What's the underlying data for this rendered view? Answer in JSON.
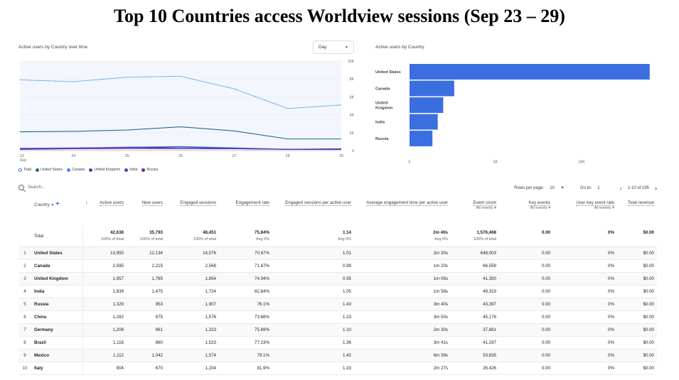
{
  "page_title": "Top 10 Countries access Worldview sessions (Sep 23 – 29)",
  "line_card": {
    "title": "Active users by Country over time",
    "dropdown_value": "Day",
    "legend": [
      {
        "label": "Total",
        "color": "#1a73e8",
        "hollow": true
      },
      {
        "label": "United States",
        "color": "#1e6e8e"
      },
      {
        "label": "Canada",
        "color": "#4285f4"
      },
      {
        "label": "United Kingdom",
        "color": "#3949ab"
      },
      {
        "label": "India",
        "color": "#5e35b1"
      },
      {
        "label": "Russia",
        "color": "#7b1fa2"
      }
    ]
  },
  "bar_card": {
    "title": "Active users by Country"
  },
  "chart_data": [
    {
      "type": "line",
      "x": [
        "23",
        "24",
        "25",
        "26",
        "27",
        "28",
        "29"
      ],
      "x_sub": "Sep",
      "yticks": [
        "0",
        "2K",
        "4K",
        "6K",
        "8K",
        "10K"
      ],
      "ylim": [
        0,
        10000
      ],
      "series": [
        {
          "name": "Total",
          "color": "#1a73e8",
          "dashed": true,
          "values": [
            7900,
            7700,
            8200,
            8300,
            6900,
            4700,
            5100
          ]
        },
        {
          "name": "United States",
          "color": "#1e6e8e",
          "values": [
            2100,
            2150,
            2300,
            2650,
            2200,
            1300,
            1300
          ]
        },
        {
          "name": "Canada",
          "color": "#4285f4",
          "values": [
            260,
            300,
            390,
            450,
            310,
            140,
            140
          ]
        },
        {
          "name": "United Kingdom",
          "color": "#3949ab",
          "values": [
            200,
            240,
            300,
            400,
            230,
            130,
            130
          ]
        },
        {
          "name": "India",
          "color": "#5e35b1",
          "values": [
            150,
            220,
            320,
            250,
            210,
            140,
            200
          ]
        },
        {
          "name": "Russia",
          "color": "#7b1fa2",
          "values": [
            130,
            200,
            240,
            220,
            200,
            150,
            150
          ]
        }
      ]
    },
    {
      "type": "bar",
      "orientation": "horizontal",
      "categories": [
        "United States",
        "Canada",
        "United Kingdom",
        "India",
        "Russia"
      ],
      "values": [
        13950,
        2595,
        1957,
        1639,
        1329
      ],
      "xticks": [
        "0",
        "5K",
        "10K"
      ],
      "xlim": [
        0,
        14000
      ],
      "color": "#3b6fe0"
    }
  ],
  "toolbar": {
    "search_placeholder": "Search...",
    "rows_per_page_label": "Rows per page:",
    "rows_per_page_value": "10",
    "goto_label": "Go to:",
    "goto_value": "1",
    "range_text": "1-10 of 195"
  },
  "table": {
    "dimension_label": "Country",
    "columns": [
      {
        "label": "Active users"
      },
      {
        "label": "New users"
      },
      {
        "label": "Engaged sessions"
      },
      {
        "label": "Engagement rate"
      },
      {
        "label": "Engaged sessions per active user"
      },
      {
        "label": "Average engagement time per active user"
      },
      {
        "label": "Event count",
        "sub": "All events"
      },
      {
        "label": "Key events",
        "sub": "All events"
      },
      {
        "label": "User key event rate",
        "sub": "All events"
      },
      {
        "label": "Total revenue"
      }
    ],
    "total": {
      "label": "Total",
      "values": [
        "42,638",
        "35,793",
        "48,451",
        "75.84%",
        "1.14",
        "2m 40s",
        "1,576,468",
        "0.00",
        "0%",
        "$0.00"
      ],
      "subs": [
        "100% of total",
        "100% of total",
        "100% of total",
        "Avg 0%",
        "Avg 0%",
        "Avg 0%",
        "100% of total",
        "",
        "",
        ""
      ]
    },
    "rows": [
      {
        "idx": "1",
        "country": "United States",
        "values": [
          "13,950",
          "12,134",
          "14,076",
          "70.67%",
          "1.01",
          "2m 30s",
          "648,003",
          "0.00",
          "0%",
          "$0.00"
        ]
      },
      {
        "idx": "2",
        "country": "Canada",
        "values": [
          "2,595",
          "2,215",
          "2,568",
          "71.67%",
          "0.99",
          "1m 20s",
          "66,559",
          "0.00",
          "0%",
          "$0.00"
        ]
      },
      {
        "idx": "3",
        "country": "United Kingdom",
        "values": [
          "1,957",
          "1,765",
          "1,854",
          "74.94%",
          "0.95",
          "1m 09s",
          "41,350",
          "0.00",
          "0%",
          "$0.00"
        ]
      },
      {
        "idx": "4",
        "country": "India",
        "values": [
          "1,639",
          "1,475",
          "1,724",
          "82.84%",
          "1.05",
          "1m 58s",
          "49,319",
          "0.00",
          "0%",
          "$0.00"
        ]
      },
      {
        "idx": "5",
        "country": "Russia",
        "values": [
          "1,329",
          "953",
          "1,907",
          "76.1%",
          "1.43",
          "3m 40s",
          "43,397",
          "0.00",
          "0%",
          "$0.00"
        ]
      },
      {
        "idx": "6",
        "country": "China",
        "values": [
          "1,282",
          "975",
          "1,576",
          "73.68%",
          "1.23",
          "3m 50s",
          "45,176",
          "0.00",
          "0%",
          "$0.00"
        ]
      },
      {
        "idx": "7",
        "country": "Germany",
        "values": [
          "1,208",
          "961",
          "1,323",
          "75.69%",
          "1.10",
          "2m 30s",
          "37,681",
          "0.00",
          "0%",
          "$0.00"
        ]
      },
      {
        "idx": "8",
        "country": "Brazil",
        "values": [
          "1,116",
          "860",
          "1,523",
          "77.23%",
          "1.36",
          "3m 41s",
          "41,297",
          "0.00",
          "0%",
          "$0.00"
        ]
      },
      {
        "idx": "9",
        "country": "Mexico",
        "values": [
          "1,112",
          "1,042",
          "1,574",
          "79.1%",
          "1.42",
          "6m 39s",
          "53,635",
          "0.00",
          "0%",
          "$0.00"
        ]
      },
      {
        "idx": "10",
        "country": "Italy",
        "values": [
          "904",
          "670",
          "1,204",
          "81.9%",
          "1.33",
          "2m 27s",
          "26,426",
          "0.00",
          "0%",
          "$0.00"
        ]
      }
    ]
  }
}
